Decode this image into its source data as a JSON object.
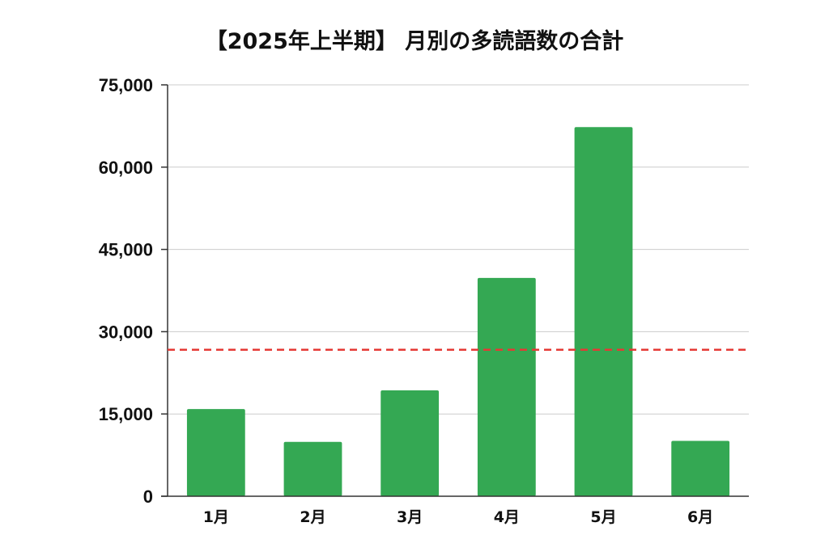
{
  "chart_data": {
    "type": "bar",
    "title": "【2025年上半期】 月別の多読語数の合計",
    "xlabel": "",
    "ylabel": "",
    "categories": [
      "1月",
      "2月",
      "3月",
      "4月",
      "5月",
      "6月"
    ],
    "values": [
      15900,
      9900,
      19300,
      39800,
      67300,
      10100
    ],
    "ylim": [
      0,
      75000
    ],
    "yticks": [
      0,
      15000,
      30000,
      45000,
      60000,
      75000
    ],
    "ytick_labels": [
      "0",
      "15,000",
      "30,000",
      "45,000",
      "60,000",
      "75,000"
    ],
    "grid": true,
    "legend": "none",
    "reference_line": {
      "value": 26700,
      "style": "dashed",
      "color": "#e53935"
    },
    "colors": {
      "bar": "#34a853",
      "grid": "#cccccc",
      "axis": "#333333",
      "text": "#111111"
    }
  }
}
